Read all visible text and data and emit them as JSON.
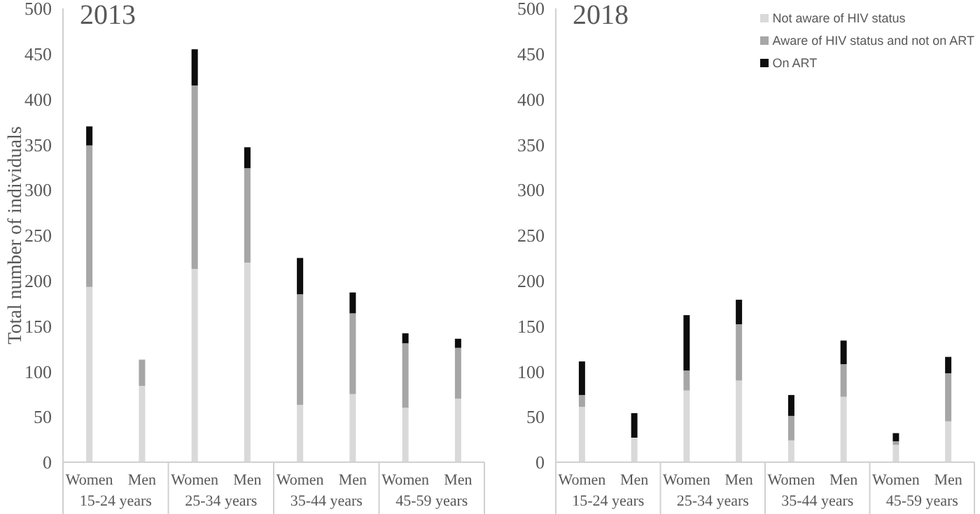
{
  "chart_data": [
    {
      "type": "bar",
      "title": "2013",
      "ylabel": "Total number of individuals",
      "categories": [
        "Women",
        "Men",
        "Women",
        "Men",
        "Women",
        "Men",
        "Women",
        "Men"
      ],
      "annotations": [
        "15-24 years",
        "25-34 years",
        "35-44 years",
        "45-59 years"
      ],
      "stacked": true,
      "ylim": [
        0,
        500
      ],
      "yticks": [
        0,
        50,
        100,
        150,
        200,
        250,
        300,
        350,
        400,
        450,
        500
      ],
      "grid": false,
      "legend": false,
      "series": [
        {
          "color": "#d9d9d9",
          "values": [
            193,
            84,
            213,
            220,
            63,
            75,
            60,
            70
          ]
        },
        {
          "color": "#a6a6a6",
          "values": [
            156,
            29,
            202,
            104,
            122,
            89,
            71,
            56
          ]
        },
        {
          "color": "#0d0d0d",
          "values": [
            21,
            0,
            40,
            23,
            40,
            23,
            11,
            10
          ]
        }
      ]
    },
    {
      "type": "bar",
      "title": "2018",
      "categories": [
        "Women",
        "Men",
        "Women",
        "Men",
        "Women",
        "Men",
        "Women",
        "Men"
      ],
      "annotations": [
        "15-24 years",
        "25-34 years",
        "35-44 years",
        "45-59 years"
      ],
      "stacked": true,
      "ylim": [
        0,
        500
      ],
      "yticks": [
        0,
        50,
        100,
        150,
        200,
        250,
        300,
        350,
        400,
        450,
        500
      ],
      "grid": false,
      "legend": "top right",
      "series": [
        {
          "name": "Not aware of HIV status",
          "color": "#d9d9d9",
          "values": [
            61,
            27,
            79,
            90,
            24,
            72,
            19,
            45
          ]
        },
        {
          "name": "Aware of HIV status and not on ART",
          "color": "#a6a6a6",
          "values": [
            13,
            0,
            22,
            62,
            27,
            36,
            4,
            53
          ]
        },
        {
          "name": "On ART",
          "color": "#0d0d0d",
          "values": [
            37,
            27,
            61,
            27,
            23,
            26,
            9,
            18
          ]
        }
      ]
    }
  ]
}
